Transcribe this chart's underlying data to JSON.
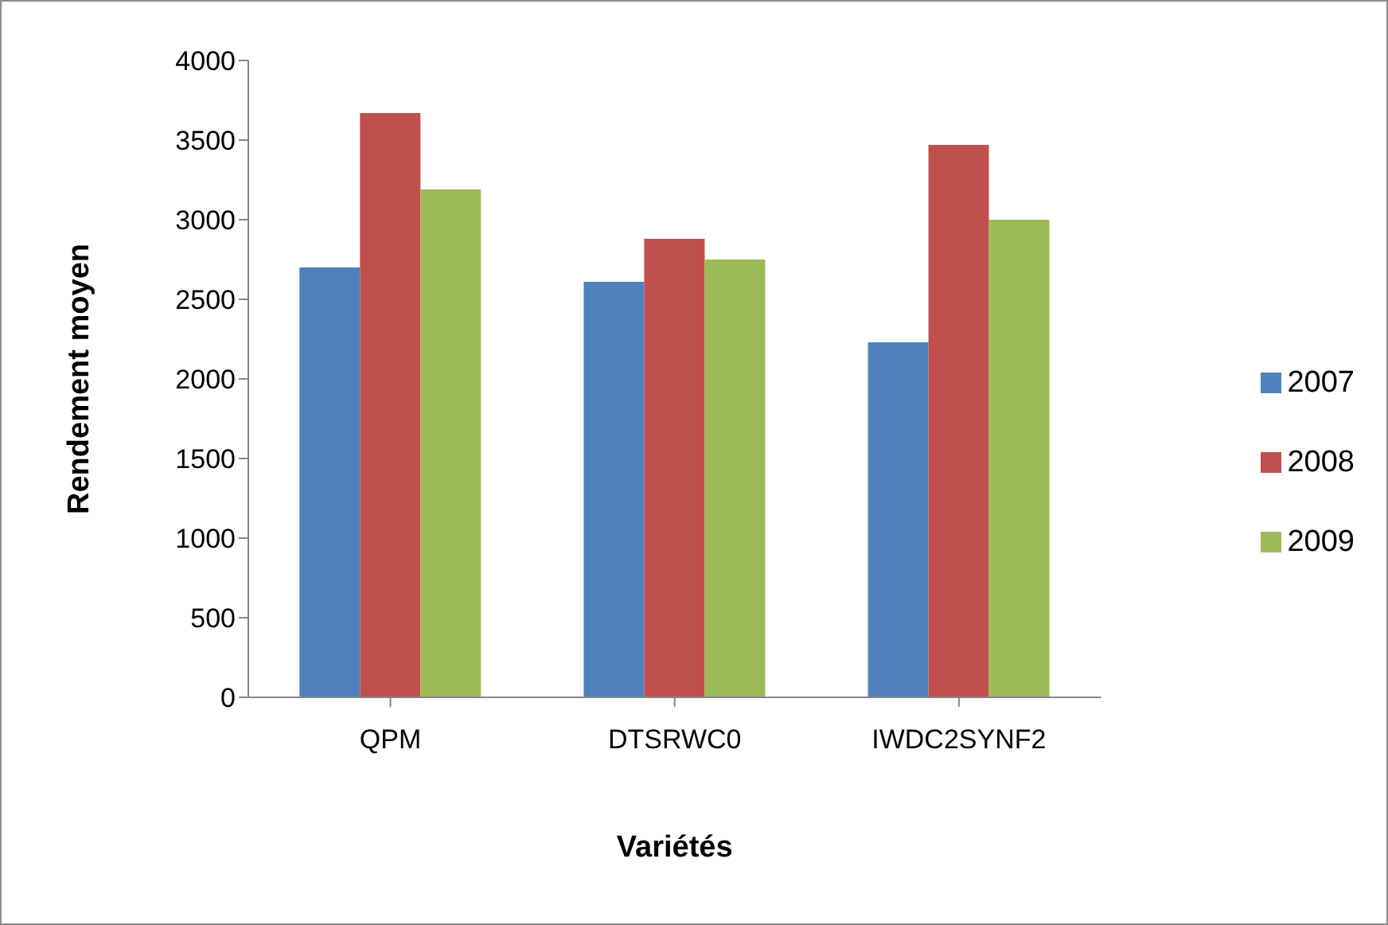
{
  "chart_data": {
    "type": "bar",
    "xlabel": "Variétés",
    "ylabel": "Rendement moyen",
    "categories": [
      "QPM",
      "DTSRWC0",
      "IWDC2SYNF2"
    ],
    "series": [
      {
        "name": "2007",
        "color": "#4f81bd",
        "values": [
          2700,
          2610,
          2230
        ]
      },
      {
        "name": "2008",
        "color": "#c0504d",
        "values": [
          3670,
          2880,
          3470
        ]
      },
      {
        "name": "2009",
        "color": "#9bbb59",
        "values": [
          3190,
          2750,
          3000
        ]
      }
    ],
    "ylim": [
      0,
      4000
    ],
    "yticks": [
      0,
      500,
      1000,
      1500,
      2000,
      2500,
      3000,
      3500,
      4000
    ],
    "grid": false,
    "legend": "right"
  }
}
